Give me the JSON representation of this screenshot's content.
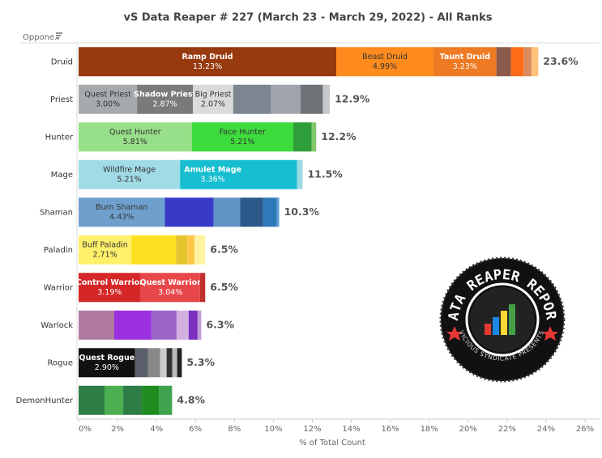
{
  "chart_data": {
    "type": "stacked-bar-h",
    "title": "vS Data Reaper # 227 (March 23 - March 29, 2022) - All Ranks",
    "row_header": "Oppone..",
    "x_label": "% of Total Count",
    "xlim": [
      0,
      26
    ],
    "xticks": [
      {
        "value": 0,
        "label": "0%"
      },
      {
        "value": 2,
        "label": "2%"
      },
      {
        "value": 4,
        "label": "4%"
      },
      {
        "value": 6,
        "label": "6%"
      },
      {
        "value": 8,
        "label": "8%"
      },
      {
        "value": 10,
        "label": "10%"
      },
      {
        "value": 12,
        "label": "12%"
      },
      {
        "value": 14,
        "label": "14%"
      },
      {
        "value": 16,
        "label": "16%"
      },
      {
        "value": 18,
        "label": "18%"
      },
      {
        "value": 20,
        "label": "20%"
      },
      {
        "value": 22,
        "label": "22%"
      },
      {
        "value": 24,
        "label": "24%"
      },
      {
        "value": 26,
        "label": "26%"
      }
    ],
    "rows": [
      {
        "category": "Druid",
        "total": 23.6,
        "total_label": "23.6%",
        "segments": [
          {
            "name": "Ramp Druid",
            "value": 13.23,
            "value_label": "13.23%",
            "color": "#973a0e"
          },
          {
            "name": "Beast Druid",
            "value": 4.99,
            "value_label": "4.99%",
            "color": "#ff8a1d"
          },
          {
            "name": "Taunt Druid",
            "value": 3.23,
            "value_label": "3.23%",
            "color": "#ee7a24"
          },
          {
            "value": 0.75,
            "color": "#8c5a4c"
          },
          {
            "value": 0.65,
            "color": "#ff6b16"
          },
          {
            "value": 0.4,
            "color": "#d98a5e"
          },
          {
            "value": 0.35,
            "color": "#ffc27a"
          }
        ]
      },
      {
        "category": "Priest",
        "total": 12.9,
        "total_label": "12.9%",
        "segments": [
          {
            "name": "Quest Priest",
            "value": 3.0,
            "value_label": "3.00%",
            "color": "#a7aaad"
          },
          {
            "name": "Shadow Priest",
            "value": 2.87,
            "value_label": "2.87%",
            "color": "#7a7a7a"
          },
          {
            "name": "Big Priest",
            "value": 2.07,
            "value_label": "2.07%",
            "color": "#dadada"
          },
          {
            "value": 1.95,
            "color": "#7d8590"
          },
          {
            "value": 1.5,
            "color": "#a0a5ad"
          },
          {
            "value": 1.15,
            "color": "#6e7378"
          },
          {
            "value": 0.36,
            "color": "#c6c9cc"
          }
        ]
      },
      {
        "category": "Hunter",
        "total": 12.2,
        "total_label": "12.2%",
        "segments": [
          {
            "name": "Quest Hunter",
            "value": 5.81,
            "value_label": "5.81%",
            "color": "#98df8a"
          },
          {
            "name": "Face Hunter",
            "value": 5.21,
            "value_label": "5.21%",
            "color": "#3ddc3d"
          },
          {
            "value": 0.95,
            "color": "#2e9e3a"
          },
          {
            "value": 0.23,
            "color": "#82c86b"
          }
        ]
      },
      {
        "category": "Mage",
        "total": 11.5,
        "total_label": "11.5%",
        "segments": [
          {
            "name": "Wildfire Mage",
            "value": 5.21,
            "value_label": "5.21%",
            "color": "#a0dbe6"
          },
          {
            "name": "Amulet Mage",
            "value": 3.36,
            "value_label": "3.36%",
            "color": "#17becf"
          },
          {
            "value": 2.65,
            "color": "#17becf"
          },
          {
            "value": 0.28,
            "color": "#9edae5"
          }
        ]
      },
      {
        "category": "Shaman",
        "total": 10.3,
        "total_label": "10.3%",
        "segments": [
          {
            "name": "Burn Shaman",
            "value": 4.43,
            "value_label": "4.43%",
            "color": "#6fa0cd"
          },
          {
            "value": 2.5,
            "color": "#3a3ac8"
          },
          {
            "value": 1.37,
            "color": "#6293c5"
          },
          {
            "value": 1.17,
            "color": "#2b5a8a"
          },
          {
            "value": 0.7,
            "color": "#3079b8"
          },
          {
            "value": 0.13,
            "color": "#5c9fd9"
          }
        ]
      },
      {
        "category": "Paladin",
        "total": 6.5,
        "total_label": "6.5%",
        "segments": [
          {
            "name": "Buff Paladin",
            "value": 2.71,
            "value_label": "2.71%",
            "color": "#fff06b"
          },
          {
            "value": 2.29,
            "color": "#ffe020"
          },
          {
            "value": 0.58,
            "color": "#e5c52e"
          },
          {
            "value": 0.37,
            "color": "#ffc84a"
          },
          {
            "value": 0.55,
            "color": "#fff2a0"
          }
        ]
      },
      {
        "category": "Warrior",
        "total": 6.5,
        "total_label": "6.5%",
        "segments": [
          {
            "name": "Control Warrior",
            "value": 3.19,
            "value_label": "3.19%",
            "color": "#d62728"
          },
          {
            "name": "Quest Warrior",
            "value": 3.04,
            "value_label": "3.04%",
            "color": "#e8474a"
          },
          {
            "value": 0.27,
            "color": "#c0302f"
          }
        ]
      },
      {
        "category": "Warlock",
        "total": 6.3,
        "total_label": "6.3%",
        "segments": [
          {
            "value": 1.83,
            "color": "#b07aa1"
          },
          {
            "value": 1.91,
            "color": "#9b30e0"
          },
          {
            "value": 1.29,
            "color": "#9b66c6"
          },
          {
            "value": 0.62,
            "color": "#d3b0e0"
          },
          {
            "value": 0.46,
            "color": "#7a2fbf"
          },
          {
            "value": 0.19,
            "color": "#c49bd6"
          }
        ]
      },
      {
        "category": "Rogue",
        "total": 5.3,
        "total_label": "5.3%",
        "segments": [
          {
            "name": "Quest Rogue",
            "value": 2.9,
            "value_label": "2.90%",
            "color": "#111111"
          },
          {
            "value": 0.67,
            "color": "#5a5f6b"
          },
          {
            "value": 0.62,
            "color": "#888888"
          },
          {
            "value": 0.33,
            "color": "#cccccc"
          },
          {
            "value": 0.29,
            "color": "#333333"
          },
          {
            "value": 0.25,
            "color": "#bbbbbb"
          },
          {
            "value": 0.24,
            "color": "#222222"
          }
        ]
      },
      {
        "category": "DemonHunter",
        "total": 4.8,
        "total_label": "4.8%",
        "segments": [
          {
            "value": 1.33,
            "color": "#2e7d46"
          },
          {
            "value": 0.96,
            "color": "#4caf50"
          },
          {
            "value": 0.96,
            "color": "#2e7d46"
          },
          {
            "value": 0.87,
            "color": "#1e8c1e"
          },
          {
            "value": 0.68,
            "color": "#3fa34d"
          }
        ]
      }
    ]
  },
  "logo": {
    "title": "DATA REAPER REPORT",
    "subtitle": "VICIOUS SYNDICATE PRESENTS"
  }
}
